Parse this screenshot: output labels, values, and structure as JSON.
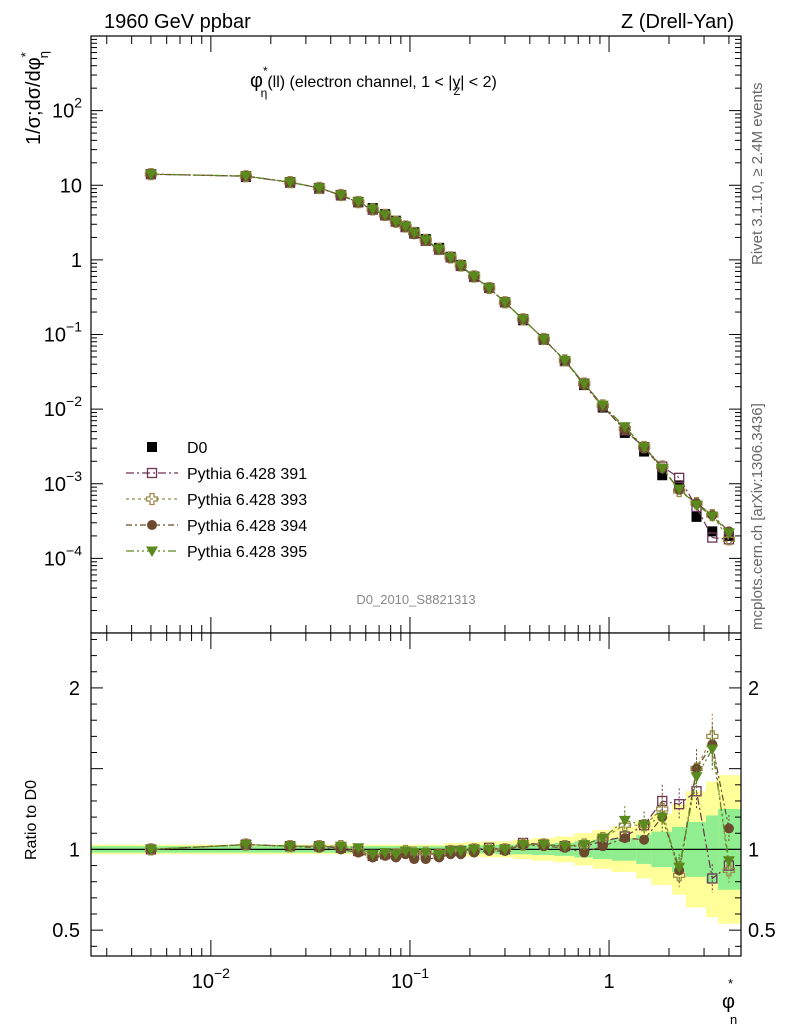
{
  "header": {
    "left": "1960 GeV ppbar",
    "right": "Z (Drell-Yan)"
  },
  "side_labels": {
    "rivet": "Rivet 3.1.10, ≥ 2.4M events",
    "mcplots": "mcplots.cern.ch [arXiv:1306.3436]"
  },
  "analysis_id": "D0_2010_S8821313",
  "colors": {
    "d0": "#000000",
    "p391": "#6b3550",
    "p393": "#9a8a4a",
    "p394": "#6b4a2e",
    "p395": "#5a8a1e",
    "band_inner": "#90ee90",
    "band_outer": "#ffff99"
  },
  "chart_data": [
    {
      "type": "scatter",
      "panel": "main",
      "title": "φ*η(ll) (electron channel, 1 < |yZ| < 2)",
      "title_parts": {
        "phi": "φ",
        "star": "*",
        "eta": "η",
        "rest1": "(ll) (electron channel, 1 < |",
        "y": "y",
        "z": "Z",
        "rest2": "| < 2)"
      },
      "ylabel": "1/σ;dσ/dφ*η",
      "ylabel_parts": {
        "main": "1/σ;dσ/dφ",
        "star": "*",
        "eta": "η"
      },
      "xscale": "log",
      "yscale": "log",
      "xlim": [
        0.0025,
        4.6
      ],
      "ylim": [
        1e-05,
        1000
      ],
      "y_ticks": [
        {
          "value": 0.0001,
          "base": "10",
          "exp": "−4"
        },
        {
          "value": 0.001,
          "base": "10",
          "exp": "−3"
        },
        {
          "value": 0.01,
          "base": "10",
          "exp": "−2"
        },
        {
          "value": 0.1,
          "base": "10",
          "exp": "−1"
        },
        {
          "value": 1,
          "base": "1",
          "exp": ""
        },
        {
          "value": 10,
          "base": "10",
          "exp": ""
        },
        {
          "value": 100,
          "base": "10",
          "exp": "2"
        }
      ],
      "legend_position": "middle-left",
      "x": [
        0.005,
        0.015,
        0.025,
        0.035,
        0.045,
        0.055,
        0.065,
        0.075,
        0.085,
        0.095,
        0.105,
        0.12,
        0.14,
        0.16,
        0.18,
        0.21,
        0.25,
        0.3,
        0.37,
        0.47,
        0.6,
        0.75,
        0.93,
        1.2,
        1.5,
        1.85,
        2.25,
        2.75,
        3.3,
        4.0
      ],
      "series": [
        {
          "name": "D0",
          "marker": "square-filled",
          "values": [
            14.1,
            12.9,
            10.8,
            9.0,
            7.3,
            6.0,
            4.95,
            4.1,
            3.35,
            2.8,
            2.35,
            1.9,
            1.45,
            1.1,
            0.85,
            0.6,
            0.42,
            0.27,
            0.155,
            0.085,
            0.044,
            0.021,
            0.0105,
            0.0048,
            0.0027,
            0.0013,
            0.00095,
            0.00036,
            0.00023,
            0.0002
          ]
        },
        {
          "name": "Pythia 6.428 391",
          "marker": "square-open",
          "values": [
            14.1,
            13.2,
            11.0,
            9.2,
            7.4,
            5.9,
            4.7,
            3.95,
            3.25,
            2.75,
            2.25,
            1.8,
            1.37,
            1.08,
            0.83,
            0.59,
            0.42,
            0.27,
            0.16,
            0.087,
            0.044,
            0.022,
            0.011,
            0.0052,
            0.0031,
            0.0017,
            0.0012,
            0.00049,
            0.00019,
            0.00018
          ]
        },
        {
          "name": "Pythia 6.428 393",
          "marker": "cross-open",
          "values": [
            14.1,
            13.2,
            11.0,
            9.2,
            7.4,
            5.95,
            4.75,
            4.0,
            3.25,
            2.8,
            2.3,
            1.85,
            1.4,
            1.08,
            0.84,
            0.6,
            0.42,
            0.27,
            0.16,
            0.087,
            0.045,
            0.022,
            0.0112,
            0.0055,
            0.0031,
            0.0017,
            0.0008,
            0.00055,
            0.00038,
            0.00018
          ]
        },
        {
          "name": "Pythia 6.428 394",
          "marker": "circle-filled",
          "values": [
            14.0,
            13.3,
            11.0,
            9.2,
            7.3,
            5.9,
            4.7,
            3.95,
            3.2,
            2.75,
            2.2,
            1.8,
            1.37,
            1.06,
            0.83,
            0.59,
            0.42,
            0.27,
            0.16,
            0.087,
            0.045,
            0.021,
            0.0108,
            0.0053,
            0.003,
            0.0016,
            0.00083,
            0.00055,
            0.00038,
            0.00023
          ]
        },
        {
          "name": "Pythia 6.428 395",
          "marker": "triangle-down-filled",
          "values": [
            14.1,
            13.3,
            11.0,
            9.2,
            7.4,
            6.0,
            4.8,
            4.0,
            3.25,
            2.8,
            2.3,
            1.85,
            1.4,
            1.08,
            0.84,
            0.6,
            0.42,
            0.27,
            0.16,
            0.087,
            0.045,
            0.022,
            0.0113,
            0.0058,
            0.0031,
            0.0016,
            0.00085,
            0.00052,
            0.00037,
            0.00022
          ]
        }
      ]
    },
    {
      "type": "scatter",
      "panel": "ratio",
      "ylabel": "Ratio to D0",
      "xlabel": "φ*η",
      "xlabel_parts": {
        "phi": "φ",
        "star": "*",
        "eta": "η"
      },
      "xscale": "log",
      "xlim": [
        0.0025,
        4.6
      ],
      "ylim": [
        0.34,
        2.34
      ],
      "y_ticks": [
        {
          "value": 0.5,
          "label": "0.5"
        },
        {
          "value": 1,
          "label": "1"
        },
        {
          "value": 2,
          "label": "2"
        }
      ],
      "x_ticks": [
        {
          "value": 0.01,
          "base": "10",
          "exp": "−2"
        },
        {
          "value": 0.1,
          "base": "10",
          "exp": "−1"
        },
        {
          "value": 1,
          "base": "1",
          "exp": ""
        }
      ],
      "bin_edges": [
        0.0025,
        0.01,
        0.02,
        0.03,
        0.04,
        0.05,
        0.06,
        0.07,
        0.08,
        0.09,
        0.1,
        0.11,
        0.13,
        0.15,
        0.17,
        0.19,
        0.23,
        0.27,
        0.33,
        0.41,
        0.53,
        0.67,
        0.83,
        1.03,
        1.37,
        1.63,
        2.07,
        2.43,
        3.07,
        3.53,
        4.6
      ],
      "band_inner": [
        0.02,
        0.02,
        0.02,
        0.02,
        0.02,
        0.02,
        0.02,
        0.02,
        0.02,
        0.02,
        0.02,
        0.02,
        0.02,
        0.025,
        0.025,
        0.025,
        0.025,
        0.03,
        0.03,
        0.035,
        0.04,
        0.05,
        0.06,
        0.07,
        0.09,
        0.11,
        0.14,
        0.17,
        0.21,
        0.25
      ],
      "band_outer": [
        0.03,
        0.03,
        0.03,
        0.03,
        0.03,
        0.03,
        0.03,
        0.03,
        0.03,
        0.03,
        0.03,
        0.03,
        0.03,
        0.04,
        0.04,
        0.045,
        0.05,
        0.05,
        0.06,
        0.07,
        0.08,
        0.1,
        0.12,
        0.14,
        0.18,
        0.22,
        0.28,
        0.36,
        0.42,
        0.46
      ],
      "series": [
        {
          "name": "Pythia 6.428 391",
          "values": [
            1.0,
            1.03,
            1.02,
            1.02,
            1.01,
            0.99,
            0.96,
            0.97,
            0.97,
            0.98,
            0.97,
            0.97,
            0.97,
            0.99,
            0.99,
            1.0,
            1.01,
            1.0,
            1.04,
            1.03,
            1.02,
            1.02,
            1.05,
            1.08,
            1.15,
            1.3,
            1.28,
            1.36,
            0.82,
            0.9
          ]
        },
        {
          "name": "Pythia 6.428 393",
          "values": [
            1.0,
            1.03,
            1.02,
            1.02,
            1.02,
            0.99,
            0.96,
            0.97,
            0.97,
            0.99,
            0.98,
            0.98,
            0.97,
            0.99,
            0.99,
            1.0,
            1.0,
            1.0,
            1.03,
            1.03,
            1.02,
            1.03,
            1.07,
            1.15,
            1.15,
            1.25,
            0.84,
            1.5,
            1.7,
            0.87
          ]
        },
        {
          "name": "Pythia 6.428 394",
          "values": [
            1.0,
            1.03,
            1.02,
            1.01,
            1.0,
            0.98,
            0.95,
            0.96,
            0.95,
            0.97,
            0.94,
            0.94,
            0.95,
            0.97,
            0.97,
            0.98,
            0.99,
            0.99,
            1.03,
            1.02,
            1.01,
            0.98,
            1.02,
            1.07,
            1.06,
            1.2,
            0.87,
            1.5,
            1.65,
            1.13
          ]
        },
        {
          "name": "Pythia 6.428 395",
          "values": [
            1.0,
            1.03,
            1.02,
            1.02,
            1.02,
            1.01,
            0.97,
            0.98,
            0.97,
            0.99,
            0.98,
            0.98,
            0.97,
            0.99,
            0.99,
            1.0,
            1.0,
            1.0,
            1.03,
            1.03,
            1.02,
            1.03,
            1.07,
            1.18,
            1.15,
            1.2,
            0.89,
            1.45,
            1.62,
            0.93
          ]
        }
      ]
    }
  ]
}
